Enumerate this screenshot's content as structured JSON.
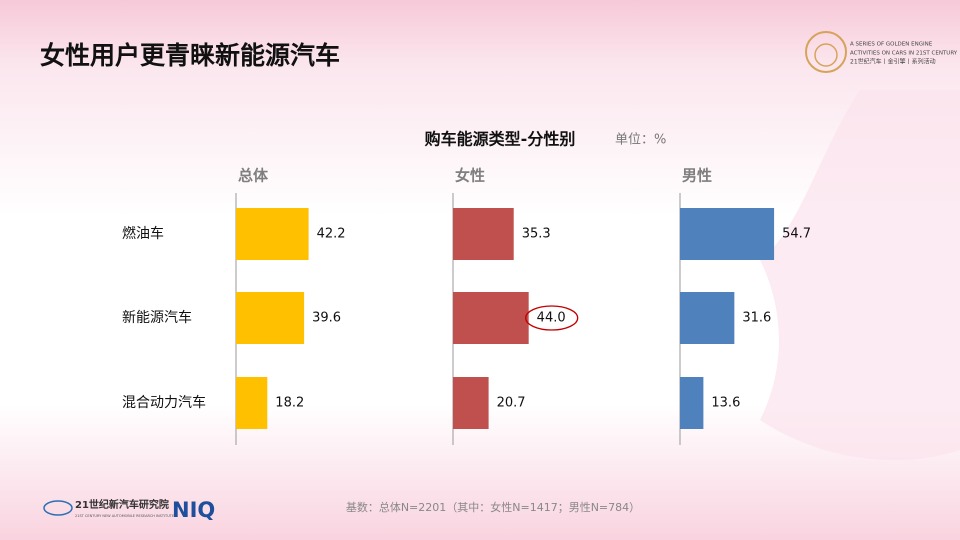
{
  "page_title": "女性用户更青睐新能源汽车",
  "logo": {
    "line1": "A SERIES OF GOLDEN ENGINE",
    "line2": "ACTIVITIES ON CARS IN 21ST CENTURY",
    "line3": "21世纪汽车丨金引擎丨系列活动"
  },
  "footer": {
    "note": "基数：总体N=2201（其中：女性N=1417；男性N=784）",
    "org_cn": "21世纪新汽车研究院",
    "org_en": "21ST CENTURY NEW AUTOMOBILE RESEARCH INSTITUTE",
    "brand": "NIQ"
  },
  "chart_data": {
    "type": "bar",
    "title": "购车能源类型-分性别",
    "unit": "单位：%",
    "categories": [
      "燃油车",
      "新能源汽车",
      "混合动力汽车"
    ],
    "series": [
      {
        "name": "总体",
        "color": "#ffc000",
        "values": [
          42.2,
          39.6,
          18.2
        ]
      },
      {
        "name": "女性",
        "color": "#c0504d",
        "values": [
          35.3,
          44.0,
          20.7
        ],
        "value_labels": [
          "35.3",
          "44.0",
          "20.7"
        ]
      },
      {
        "name": "男性",
        "color": "#4f81bd",
        "values": [
          54.7,
          31.6,
          13.6
        ]
      }
    ]
  }
}
